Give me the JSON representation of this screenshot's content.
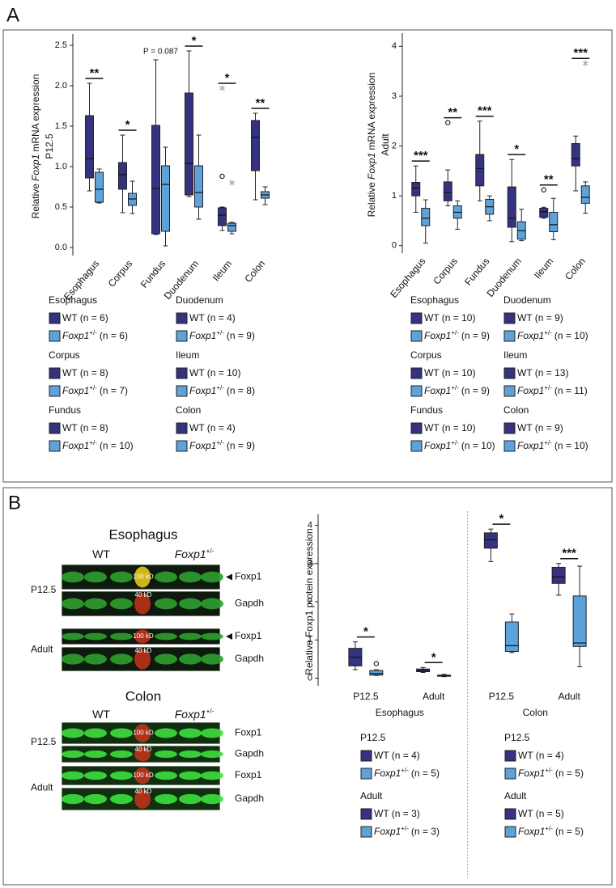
{
  "panels": [
    "A",
    "B"
  ],
  "chart_data": [
    {
      "type": "box",
      "ylabel": {
        "pre": "Relative",
        "gene": "Foxp1",
        "post": "mRNA expression",
        "line2": "P12.5"
      },
      "categories": [
        "Esophagus",
        "Corpus",
        "Fundus",
        "Duodenum",
        "Ileum",
        "Colon"
      ],
      "ylim": [
        -0.1,
        2.6
      ],
      "yticks": [
        {
          "value": 0,
          "label": "0.0"
        },
        0.5,
        {
          "value": 1,
          "label": "1.0"
        },
        1.5,
        {
          "value": 2,
          "label": "2.0"
        },
        2.5
      ],
      "significance": [
        "**",
        "*",
        "P = 0.087",
        "*",
        "*",
        "**"
      ],
      "series": [
        {
          "color": "#35327f",
          "values": [
            {
              "min": 0.7,
              "q1": 0.86,
              "median": 1.1,
              "q3": 1.63,
              "max": 2.03
            },
            {
              "min": 0.43,
              "q1": 0.72,
              "median": 0.9,
              "q3": 1.05,
              "max": 1.39
            },
            {
              "min": 0.16,
              "q1": 0.17,
              "median": 0.73,
              "q3": 1.51,
              "max": 2.32
            },
            {
              "min": 0.63,
              "q1": 0.65,
              "median": 1.04,
              "q3": 1.91,
              "max": 2.43
            },
            {
              "min": 0.21,
              "q1": 0.27,
              "median": 0.4,
              "q3": 0.49,
              "max": 0.5,
              "outliers": [
                0.88
              ],
              "extremes": [
                1.97
              ]
            },
            {
              "min": 0.59,
              "q1": 0.95,
              "median": 1.36,
              "q3": 1.57,
              "max": 1.66
            }
          ]
        },
        {
          "color": "#5ea2da",
          "values": [
            {
              "min": 0.55,
              "q1": 0.56,
              "median": 0.72,
              "q3": 0.93,
              "max": 0.97
            },
            {
              "min": 0.42,
              "q1": 0.52,
              "median": 0.6,
              "q3": 0.67,
              "max": 0.82
            },
            {
              "min": 0.02,
              "q1": 0.2,
              "median": 0.78,
              "q3": 1.01,
              "max": 1.24
            },
            {
              "min": 0.35,
              "q1": 0.5,
              "median": 0.68,
              "q3": 1.01,
              "max": 1.39
            },
            {
              "min": 0.17,
              "q1": 0.2,
              "median": 0.27,
              "q3": 0.3,
              "max": 0.31,
              "extremes": [
                0.8
              ]
            },
            {
              "min": 0.53,
              "q1": 0.61,
              "median": 0.65,
              "q3": 0.69,
              "max": 0.75
            }
          ]
        }
      ],
      "legend": [
        {
          "title": "Esophagus",
          "entries": [
            {
              "label": "WT (n = 6)"
            },
            {
              "gene": "Foxp1",
              "sup": "+/-",
              "label": "(n = 6)"
            }
          ]
        },
        {
          "title": "Corpus",
          "entries": [
            {
              "label": "WT (n = 8)"
            },
            {
              "gene": "Foxp1",
              "sup": "+/-",
              "label": "(n = 7)"
            }
          ]
        },
        {
          "title": "Fundus",
          "entries": [
            {
              "label": "WT (n = 8)"
            },
            {
              "gene": "Foxp1",
              "sup": "+/-",
              "label": "(n = 10)"
            }
          ]
        },
        {
          "title": "Duodenum",
          "entries": [
            {
              "label": "WT (n = 4)"
            },
            {
              "gene": "Foxp1",
              "sup": "+/-",
              "label": "(n = 9)"
            }
          ]
        },
        {
          "title": "Ileum",
          "entries": [
            {
              "label": "WT (n = 10)"
            },
            {
              "gene": "Foxp1",
              "sup": "+/-",
              "label": "(n = 8)"
            }
          ]
        },
        {
          "title": "Colon",
          "entries": [
            {
              "label": "WT (n = 4)"
            },
            {
              "gene": "Foxp1",
              "sup": "+/-",
              "label": "(n = 9)"
            }
          ]
        }
      ]
    },
    {
      "type": "box",
      "ylabel": {
        "pre": "Relative",
        "gene": "Foxp1",
        "post": "mRNA expression",
        "line2": "Adult"
      },
      "categories": [
        "Esophagus",
        "Corpus",
        "Fundus",
        "Duodenum",
        "Ileum",
        "Colon"
      ],
      "ylim": [
        -0.15,
        4.2
      ],
      "yticks": [
        0,
        1,
        2,
        3,
        4
      ],
      "significance": [
        "***",
        "**",
        "***",
        "*",
        "**",
        "***"
      ],
      "series": [
        {
          "color": "#35327f",
          "values": [
            {
              "min": 0.67,
              "q1": 1.0,
              "median": 1.15,
              "q3": 1.27,
              "max": 1.6
            },
            {
              "min": 0.8,
              "q1": 0.9,
              "median": 1.07,
              "q3": 1.28,
              "max": 1.52,
              "outliers": [
                2.47
              ]
            },
            {
              "min": 0.9,
              "q1": 1.2,
              "median": 1.55,
              "q3": 1.83,
              "max": 2.5
            },
            {
              "min": 0.08,
              "q1": 0.37,
              "median": 0.55,
              "q3": 1.18,
              "max": 1.73
            },
            {
              "min": 0.55,
              "q1": 0.57,
              "median": 0.68,
              "q3": 0.75,
              "max": 0.77,
              "outliers": [
                1.12
              ]
            },
            {
              "min": 1.1,
              "q1": 1.6,
              "median": 1.75,
              "q3": 2.05,
              "max": 2.2
            }
          ]
        },
        {
          "color": "#5ea2da",
          "values": [
            {
              "min": 0.05,
              "q1": 0.4,
              "median": 0.55,
              "q3": 0.75,
              "max": 0.92
            },
            {
              "min": 0.33,
              "q1": 0.55,
              "median": 0.67,
              "q3": 0.8,
              "max": 0.9
            },
            {
              "min": 0.5,
              "q1": 0.63,
              "median": 0.78,
              "q3": 0.93,
              "max": 1.0
            },
            {
              "min": 0.1,
              "q1": 0.13,
              "median": 0.3,
              "q3": 0.48,
              "max": 0.73
            },
            {
              "min": 0.12,
              "q1": 0.28,
              "median": 0.42,
              "q3": 0.67,
              "max": 0.95
            },
            {
              "min": 0.65,
              "q1": 0.85,
              "median": 0.97,
              "q3": 1.2,
              "max": 1.28,
              "extremes": [
                3.66
              ]
            }
          ]
        }
      ],
      "legend": [
        {
          "title": "Esophagus",
          "entries": [
            {
              "label": "WT (n = 10)"
            },
            {
              "gene": "Foxp1",
              "sup": "+/-",
              "label": "(n = 9)"
            }
          ]
        },
        {
          "title": "Corpus",
          "entries": [
            {
              "label": "WT (n = 10)"
            },
            {
              "gene": "Foxp1",
              "sup": "+/-",
              "label": "(n = 9)"
            }
          ]
        },
        {
          "title": "Fundus",
          "entries": [
            {
              "label": "WT (n = 10)"
            },
            {
              "gene": "Foxp1",
              "sup": "+/-",
              "label": "(n = 10)"
            }
          ]
        },
        {
          "title": "Duodenum",
          "entries": [
            {
              "label": "WT (n = 9)"
            },
            {
              "gene": "Foxp1",
              "sup": "+/-",
              "label": "(n = 10)"
            }
          ]
        },
        {
          "title": "Ileum",
          "entries": [
            {
              "label": "WT (n = 13)"
            },
            {
              "gene": "Foxp1",
              "sup": "+/-",
              "label": "(n = 11)"
            }
          ]
        },
        {
          "title": "Colon",
          "entries": [
            {
              "label": "WT (n = 9)"
            },
            {
              "gene": "Foxp1",
              "sup": "+/-",
              "label": "(n = 10)"
            }
          ]
        }
      ]
    },
    {
      "type": "box",
      "ylabel": {
        "pre": "Relative Foxp1 protein expression"
      },
      "categories": [
        "P12.5",
        "Adult",
        "P12.5",
        "Adult"
      ],
      "groups": [
        "Esophagus",
        "Colon"
      ],
      "ylim": [
        -0.2,
        4.2
      ],
      "yticks": [
        0,
        1,
        2,
        3,
        4
      ],
      "significance": [
        "*",
        "*",
        "*",
        "***"
      ],
      "series": [
        {
          "color": "#35327f",
          "values": [
            {
              "min": 0.22,
              "q1": 0.32,
              "median": 0.55,
              "q3": 0.78,
              "max": 0.95
            },
            {
              "min": 0.15,
              "q1": 0.17,
              "median": 0.2,
              "q3": 0.24,
              "max": 0.28
            },
            {
              "min": 3.05,
              "q1": 3.4,
              "median": 3.62,
              "q3": 3.8,
              "max": 3.9
            },
            {
              "min": 2.17,
              "q1": 2.48,
              "median": 2.65,
              "q3": 2.9,
              "max": 3.0
            }
          ]
        },
        {
          "color": "#5ea2da",
          "values": [
            {
              "min": 0.07,
              "q1": 0.08,
              "median": 0.12,
              "q3": 0.2,
              "max": 0.22,
              "outliers": [
                0.38
              ]
            },
            {
              "min": 0.04,
              "q1": 0.05,
              "median": 0.06,
              "q3": 0.08,
              "max": 0.1
            },
            {
              "min": 0.67,
              "q1": 0.7,
              "median": 0.85,
              "q3": 1.47,
              "max": 1.68
            },
            {
              "min": 0.3,
              "q1": 0.83,
              "median": 0.92,
              "q3": 2.15,
              "max": 2.93
            }
          ]
        }
      ],
      "legend": [
        {
          "title": "P12.5",
          "entries": [
            {
              "label": "WT (n = 4)"
            },
            {
              "gene": "Foxp1",
              "sup": "+/-",
              "label": "(n = 5)"
            }
          ]
        },
        {
          "title": "Adult",
          "entries": [
            {
              "label": "WT (n = 3)"
            },
            {
              "gene": "Foxp1",
              "sup": "+/-",
              "label": "(n = 3)"
            }
          ]
        },
        {
          "title": "P12.5",
          "entries": [
            {
              "label": "WT (n = 4)"
            },
            {
              "gene": "Foxp1",
              "sup": "+/-",
              "label": "(n = 5)"
            }
          ]
        },
        {
          "title": "Adult",
          "entries": [
            {
              "label": "WT (n = 5)"
            },
            {
              "gene": "Foxp1",
              "sup": "+/-",
              "label": "(n = 5)"
            }
          ]
        }
      ]
    }
  ],
  "blots": [
    {
      "tissue": "Esophagus",
      "groups": [
        {
          "label": "WT"
        },
        {
          "gene": "Foxp1",
          "sup": "+/-"
        }
      ],
      "rows": [
        {
          "stage": "P12.5",
          "bands": [
            {
              "protein": "Foxp1",
              "marker": "100 kD"
            },
            {
              "protein": "Gapdh",
              "marker": "40 kD"
            }
          ]
        },
        {
          "stage": "Adult",
          "bands": [
            {
              "protein": "Foxp1",
              "marker": "100 kD"
            },
            {
              "protein": "Gapdh",
              "marker": "40 kD"
            }
          ]
        }
      ]
    },
    {
      "tissue": "Colon",
      "groups": [
        {
          "label": "WT"
        },
        {
          "gene": "Foxp1",
          "sup": "+/-"
        }
      ],
      "rows": [
        {
          "stage": "P12.5",
          "bands": [
            {
              "protein": "Foxp1",
              "marker": "100 kD"
            },
            {
              "protein": "Gapdh",
              "marker": "40 kD"
            }
          ]
        },
        {
          "stage": "Adult",
          "bands": [
            {
              "protein": "Foxp1",
              "marker": "100 kD"
            },
            {
              "protein": "Gapdh",
              "marker": "40 kD"
            }
          ]
        }
      ]
    }
  ]
}
